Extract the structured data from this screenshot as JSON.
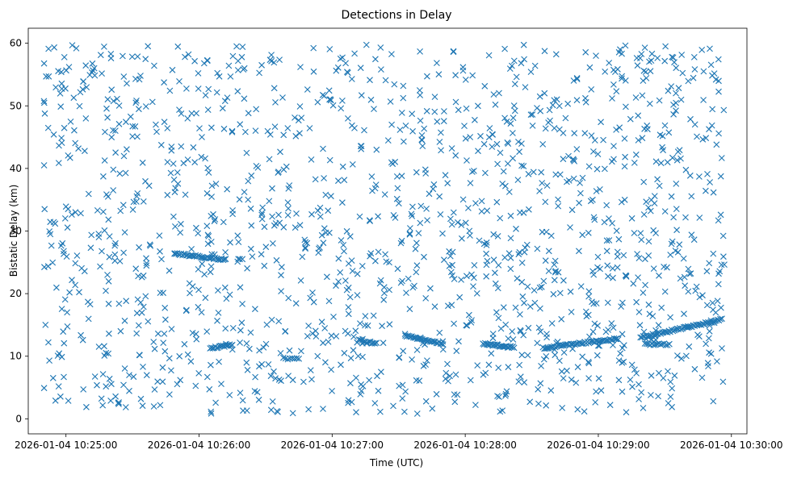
{
  "chart_data": {
    "type": "scatter",
    "title": "Detections in Delay",
    "xlabel": "Time (UTC)",
    "ylabel": "Bistatic Delay (km)",
    "x_ticks": [
      "2026-01-04 10:25:00",
      "2026-01-04 10:26:00",
      "2026-01-04 10:27:00",
      "2026-01-04 10:28:00",
      "2026-01-04 10:29:00",
      "2026-01-04 10:30:00"
    ],
    "y_ticks": [
      "0",
      "10",
      "20",
      "30",
      "40",
      "50",
      "60"
    ],
    "xlim": [
      "2026-01-04 10:24:43",
      "2026-01-04 10:30:07"
    ],
    "ylim": [
      -2.4,
      62.4
    ],
    "grid": false,
    "marker": "x",
    "color": "#1f77b4",
    "background_detections": {
      "count": 1500,
      "time_range": [
        "2026-01-04 10:24:50",
        "2026-01-04 10:29:57"
      ],
      "delay_range_km": [
        0.8,
        59.8
      ]
    },
    "tracks": [
      {
        "start_time": "2026-01-04 10:25:49",
        "end_time": "2026-01-04 10:26:12",
        "start_delay_km": 26.4,
        "end_delay_km": 25.4,
        "count": 40
      },
      {
        "start_time": "2026-01-04 10:26:05",
        "end_time": "2026-01-04 10:26:15",
        "start_delay_km": 11.3,
        "end_delay_km": 11.8,
        "count": 18
      },
      {
        "start_time": "2026-01-04 10:26:38",
        "end_time": "2026-01-04 10:26:45",
        "start_delay_km": 9.6,
        "end_delay_km": 9.6,
        "count": 8
      },
      {
        "start_time": "2026-01-04 10:27:12",
        "end_time": "2026-01-04 10:27:20",
        "start_delay_km": 12.6,
        "end_delay_km": 12.0,
        "count": 12
      },
      {
        "start_time": "2026-01-04 10:27:33",
        "end_time": "2026-01-04 10:27:50",
        "start_delay_km": 13.3,
        "end_delay_km": 12.0,
        "count": 30
      },
      {
        "start_time": "2026-01-04 10:28:08",
        "end_time": "2026-01-04 10:28:22",
        "start_delay_km": 12.0,
        "end_delay_km": 11.4,
        "count": 30
      },
      {
        "start_time": "2026-01-04 10:28:35",
        "end_time": "2026-01-04 10:29:09",
        "start_delay_km": 11.3,
        "end_delay_km": 12.8,
        "count": 55
      },
      {
        "start_time": "2026-01-04 10:29:19",
        "end_time": "2026-01-04 10:29:55",
        "start_delay_km": 13.0,
        "end_delay_km": 15.8,
        "count": 60
      },
      {
        "start_time": "2026-01-04 10:29:21",
        "end_time": "2026-01-04 10:29:32",
        "start_delay_km": 11.9,
        "end_delay_km": 11.9,
        "count": 15
      }
    ]
  }
}
